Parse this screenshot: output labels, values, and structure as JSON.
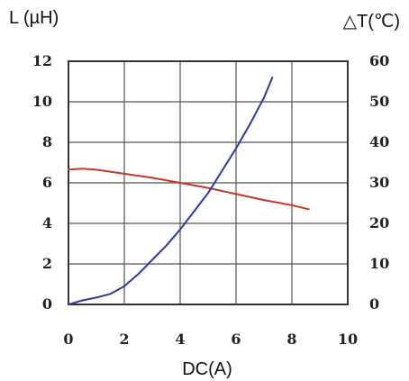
{
  "chart_data": {
    "type": "line",
    "xlabel": "DC(A)",
    "ylabel_left": "L (µH)",
    "ylabel_right": "△T(℃)",
    "xlim": [
      0,
      10
    ],
    "ylim_left": [
      0,
      12
    ],
    "ylim_right": [
      0,
      60
    ],
    "x_ticks": [
      "0",
      "2",
      "4",
      "6",
      "8",
      "10"
    ],
    "y_left_ticks": [
      "0",
      "2",
      "4",
      "6",
      "8",
      "10",
      "12"
    ],
    "y_right_ticks": [
      "0",
      "10",
      "20",
      "30",
      "40",
      "50",
      "60"
    ],
    "grid": true,
    "series": [
      {
        "axis": "left",
        "color": "#c0392b",
        "x": [
          0,
          0.5,
          1,
          2,
          3,
          4,
          5,
          6,
          7,
          8,
          8.6
        ],
        "y": [
          6.65,
          6.7,
          6.65,
          6.45,
          6.25,
          6.0,
          5.75,
          5.45,
          5.15,
          4.9,
          4.7
        ]
      },
      {
        "axis": "right",
        "color": "#2b3aa8",
        "x": [
          0,
          0.5,
          1,
          1.5,
          2,
          2.5,
          3,
          3.5,
          4,
          4.5,
          5,
          5.5,
          6,
          6.5,
          7,
          7.3
        ],
        "y": [
          0,
          1,
          1.7,
          2.6,
          4.5,
          7.5,
          11,
          14.5,
          18.5,
          23,
          27.5,
          33,
          38.5,
          44.5,
          51,
          56
        ]
      }
    ]
  }
}
